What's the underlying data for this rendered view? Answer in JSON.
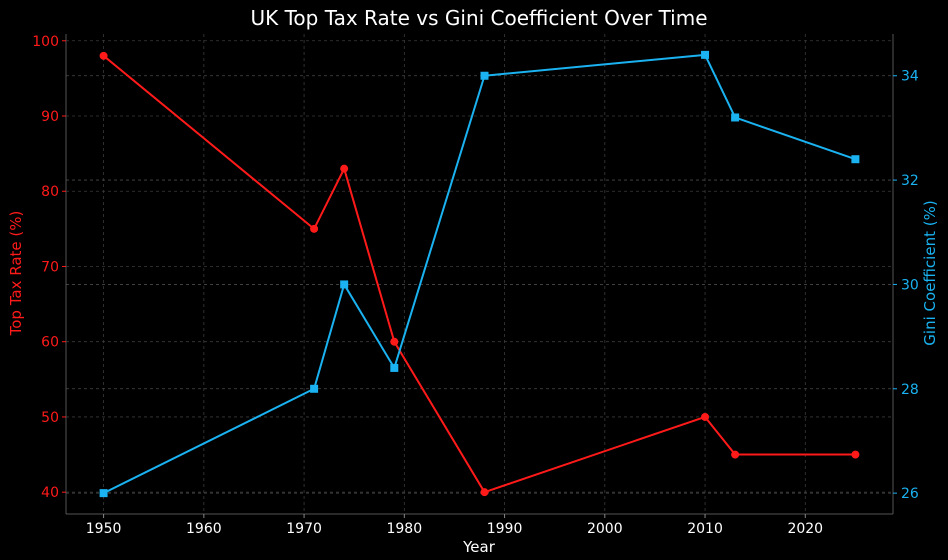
{
  "chart_data": {
    "type": "line",
    "title": "UK Top Tax Rate vs Gini Coefficient Over Time",
    "xlabel": "Year",
    "ylabel_left": "Top Tax Rate (%)",
    "ylabel_right": "Gini Coefficient (%)",
    "x": [
      1950,
      1971,
      1974,
      1979,
      1988,
      2010,
      2013,
      2025
    ],
    "xlim": [
      1946.25,
      2028.75
    ],
    "xticks": [
      1950,
      1960,
      1970,
      1980,
      1990,
      2000,
      2010,
      2020
    ],
    "ylim_left": [
      37.1,
      100.9
    ],
    "yticks_left": [
      40,
      50,
      60,
      70,
      80,
      90,
      100
    ],
    "ylim_right": [
      25.6,
      34.8
    ],
    "yticks_right": [
      26,
      28,
      30,
      32,
      34
    ],
    "grid": true,
    "series": [
      {
        "name": "Top Tax Rate",
        "axis": "left",
        "color": "#ff1a1a",
        "marker": "circle",
        "values": [
          98,
          75,
          83,
          60,
          40,
          50,
          45,
          45
        ]
      },
      {
        "name": "Gini Coefficient",
        "axis": "right",
        "color": "#1ab2f0",
        "marker": "square",
        "values": [
          26,
          28,
          30,
          28.4,
          34,
          34.4,
          33.2,
          32.4
        ]
      }
    ],
    "colors": {
      "background": "#000000",
      "grid": "#3a3a3a",
      "axis": "#555555",
      "text": "#ffffff",
      "left_axis": "#ff1a1a",
      "right_axis": "#1ab2f0"
    }
  }
}
